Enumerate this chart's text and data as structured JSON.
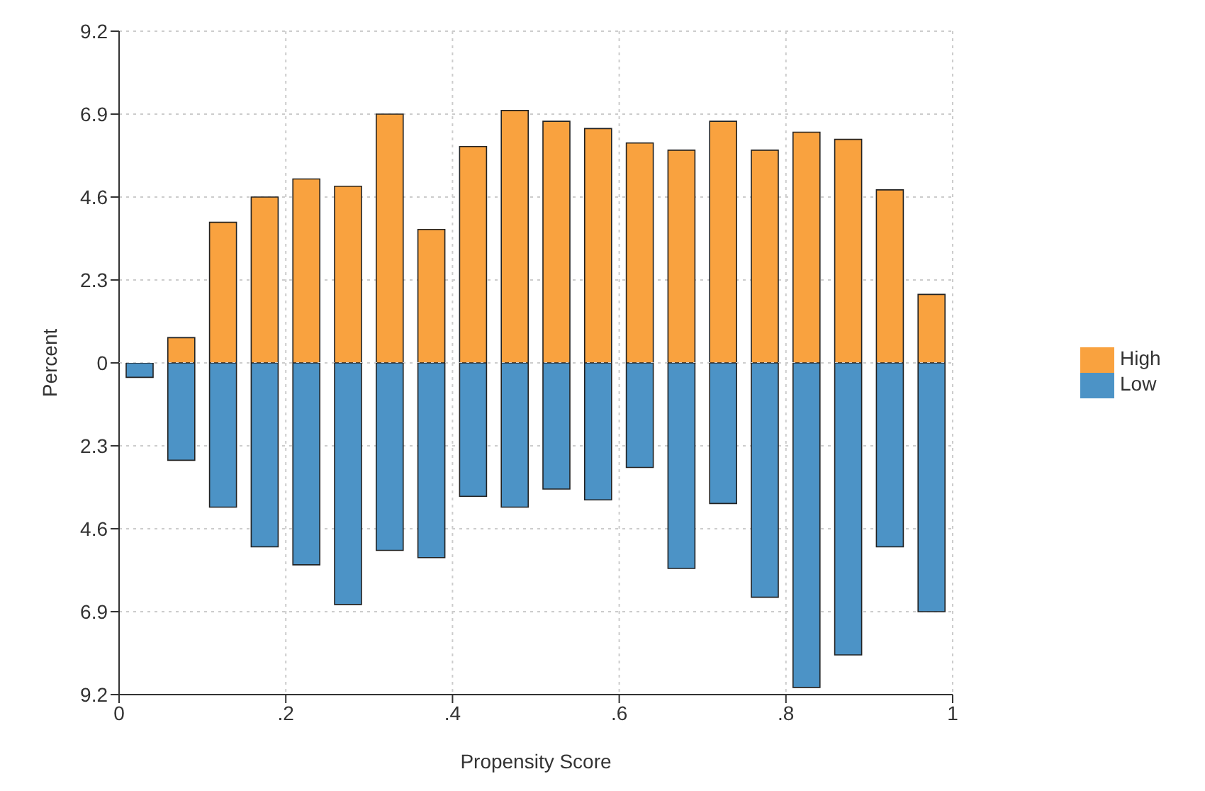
{
  "chart_data": [
    {
      "type": "bar",
      "ylabel": "Percent",
      "x": [
        0.025,
        0.075,
        0.125,
        0.175,
        0.225,
        0.275,
        0.325,
        0.375,
        0.425,
        0.475,
        0.525,
        0.575,
        0.625,
        0.675,
        0.725,
        0.775,
        0.825,
        0.875,
        0.925,
        0.975
      ],
      "series": [
        {
          "name": "High",
          "color": "#f9a23f",
          "values": [
            0,
            0.7,
            3.9,
            4.6,
            5.1,
            4.9,
            6.9,
            3.7,
            6.0,
            7.0,
            6.7,
            6.5,
            6.1,
            5.9,
            6.7,
            5.9,
            6.4,
            6.2,
            4.8,
            1.9
          ]
        }
      ],
      "xlim": [
        0,
        1
      ],
      "xticks": [
        0,
        0.2,
        0.4,
        0.6,
        0.8,
        1
      ],
      "ylim": [
        0,
        9.2
      ],
      "yticks": [
        0,
        2.3,
        4.6,
        6.9,
        9.2
      ],
      "tick_labels": "y",
      "grid": true,
      "legend": "bottom right"
    },
    {
      "type": "bar",
      "xlabel": "Propensity Score",
      "x": [
        0.025,
        0.075,
        0.125,
        0.175,
        0.225,
        0.275,
        0.325,
        0.375,
        0.425,
        0.475,
        0.525,
        0.575,
        0.625,
        0.675,
        0.725,
        0.775,
        0.825,
        0.875,
        0.925,
        0.975
      ],
      "series": [
        {
          "name": "Low",
          "color": "#4c93c6",
          "values": [
            0.4,
            2.7,
            4.0,
            5.1,
            5.6,
            6.7,
            5.2,
            5.4,
            3.7,
            4.0,
            3.5,
            3.8,
            2.9,
            5.7,
            3.9,
            6.5,
            9.0,
            8.1,
            5.1,
            6.9
          ]
        }
      ],
      "xlim": [
        0,
        1
      ],
      "xticks": [
        0,
        {
          "value": 0.2,
          "label": ".2"
        },
        {
          "value": 0.4,
          "label": ".4"
        },
        {
          "value": 0.6,
          "label": ".6"
        },
        {
          "value": 0.8,
          "label": ".8"
        },
        1
      ],
      "ylim": [
        9.2,
        0
      ],
      "yticks": [
        {
          "value": 0,
          "label": null
        },
        2.3,
        4.6,
        6.9,
        9.2
      ],
      "grid": true,
      "legend": "top right"
    }
  ]
}
